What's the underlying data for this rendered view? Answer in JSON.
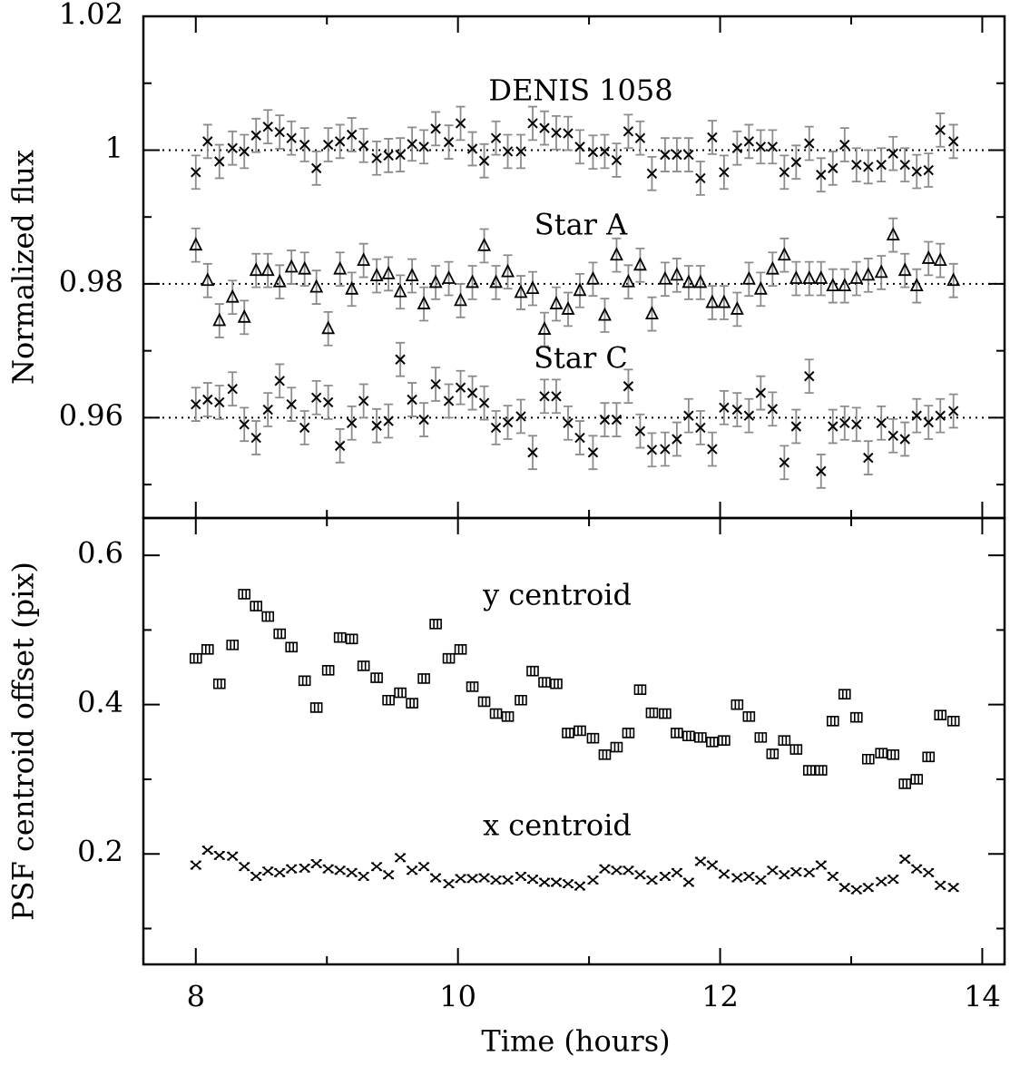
{
  "chart_data": [
    {
      "type": "scatter",
      "ylabel": "Normalized flux",
      "x": [
        8.0,
        8.09,
        8.18,
        8.28,
        8.37,
        8.46,
        8.55,
        8.64,
        8.73,
        8.83,
        8.92,
        9.01,
        9.1,
        9.19,
        9.28,
        9.38,
        9.47,
        9.56,
        9.65,
        9.74,
        9.83,
        9.93,
        10.02,
        10.11,
        10.2,
        10.29,
        10.38,
        10.48,
        10.57,
        10.66,
        10.75,
        10.84,
        10.93,
        11.03,
        11.12,
        11.21,
        11.3,
        11.39,
        11.48,
        11.58,
        11.67,
        11.76,
        11.85,
        11.94,
        12.03,
        12.13,
        12.22,
        12.31,
        12.4,
        12.49,
        12.58,
        12.68,
        12.77,
        12.86,
        12.95,
        13.04,
        13.13,
        13.23,
        13.32,
        13.41,
        13.5,
        13.59,
        13.68,
        13.78
      ],
      "series": [
        {
          "name": "DENIS 1058",
          "marker": "x",
          "color": "#000000",
          "error_color": "#8c8c8c",
          "error": 0.0025,
          "values": [
            0.9967,
            1.0013,
            0.9983,
            1.0003,
            0.9998,
            1.0022,
            1.0035,
            1.0027,
            1.0018,
            1.0008,
            0.9973,
            1.0008,
            1.0013,
            1.0023,
            1.0007,
            0.9988,
            0.9992,
            0.9993,
            1.0009,
            1.0005,
            1.0032,
            1.0012,
            1.004,
            1.0002,
            0.9984,
            1.0018,
            0.9998,
            0.9998,
            1.004,
            1.0033,
            1.0026,
            1.0025,
            1.0005,
            0.9997,
            0.9998,
            0.9985,
            1.0028,
            1.0018,
            0.9965,
            0.9993,
            0.9993,
            0.9993,
            0.9958,
            1.0019,
            0.9967,
            1.0003,
            1.0013,
            1.0005,
            1.0005,
            0.9967,
            0.9982,
            1.001,
            0.9963,
            0.9973,
            1.0008,
            0.9978,
            0.9975,
            0.9978,
            0.9995,
            0.9978,
            0.9968,
            0.997,
            1.003,
            1.0013
          ]
        },
        {
          "name": "Star A",
          "marker": "triangle",
          "color": "#000000",
          "error_color": "#8c8c8c",
          "error": 0.0025,
          "values": [
            0.9858,
            0.9805,
            0.9745,
            0.978,
            0.975,
            0.982,
            0.982,
            0.9803,
            0.9825,
            0.9822,
            0.9795,
            0.9733,
            0.9822,
            0.9792,
            0.9835,
            0.9812,
            0.9815,
            0.9788,
            0.9812,
            0.977,
            0.9802,
            0.9808,
            0.9775,
            0.9802,
            0.9857,
            0.9802,
            0.9818,
            0.9787,
            0.9793,
            0.9732,
            0.977,
            0.9762,
            0.979,
            0.9807,
            0.9753,
            0.9843,
            0.9803,
            0.9828,
            0.9755,
            0.9807,
            0.9813,
            0.9802,
            0.9802,
            0.9772,
            0.9772,
            0.9762,
            0.9807,
            0.9792,
            0.9822,
            0.9843,
            0.9808,
            0.9808,
            0.9808,
            0.9797,
            0.9797,
            0.9808,
            0.9813,
            0.9817,
            0.9873,
            0.982,
            0.9797,
            0.9838,
            0.9835,
            0.9805
          ]
        },
        {
          "name": "Star C",
          "marker": "x",
          "color": "#000000",
          "error_color": "#8c8c8c",
          "error": 0.0025,
          "values": [
            0.962,
            0.9627,
            0.9623,
            0.9643,
            0.959,
            0.957,
            0.9612,
            0.9655,
            0.962,
            0.9585,
            0.963,
            0.9623,
            0.9558,
            0.9592,
            0.9625,
            0.9588,
            0.9595,
            0.9687,
            0.9627,
            0.9597,
            0.965,
            0.9625,
            0.9645,
            0.9637,
            0.9622,
            0.9585,
            0.9593,
            0.9602,
            0.9548,
            0.9632,
            0.9632,
            0.9592,
            0.957,
            0.9548,
            0.9597,
            0.9597,
            0.9647,
            0.958,
            0.9552,
            0.9553,
            0.9568,
            0.9603,
            0.9585,
            0.9553,
            0.9615,
            0.9612,
            0.9603,
            0.9637,
            0.9613,
            0.9533,
            0.9587,
            0.9662,
            0.952,
            0.9587,
            0.9592,
            0.959,
            0.954,
            0.9592,
            0.9573,
            0.9568,
            0.9603,
            0.9593,
            0.9603,
            0.961
          ]
        }
      ],
      "reference_lines": [
        1,
        0.98,
        0.96
      ],
      "xlim": [
        7.6,
        14.17
      ],
      "ylim": [
        0.945,
        1.02
      ],
      "yticks": [
        0.96,
        0.98,
        1,
        1.02
      ],
      "minor_yticks": [
        0.95,
        0.97,
        0.99,
        1.01
      ]
    },
    {
      "type": "scatter",
      "ylabel": "PSF centroid offset (pix)",
      "xlabel": "Time (hours)",
      "x": [
        8.0,
        8.09,
        8.18,
        8.28,
        8.37,
        8.46,
        8.55,
        8.64,
        8.73,
        8.83,
        8.92,
        9.01,
        9.1,
        9.19,
        9.28,
        9.38,
        9.47,
        9.56,
        9.65,
        9.74,
        9.83,
        9.93,
        10.02,
        10.11,
        10.2,
        10.29,
        10.38,
        10.48,
        10.57,
        10.66,
        10.75,
        10.84,
        10.93,
        11.03,
        11.12,
        11.21,
        11.3,
        11.39,
        11.48,
        11.58,
        11.67,
        11.76,
        11.85,
        11.94,
        12.03,
        12.13,
        12.22,
        12.31,
        12.4,
        12.49,
        12.58,
        12.68,
        12.77,
        12.86,
        12.95,
        13.04,
        13.13,
        13.23,
        13.32,
        13.41,
        13.5,
        13.59,
        13.68,
        13.78
      ],
      "series": [
        {
          "name": "y centroid",
          "marker": "box",
          "color": "#000000",
          "values": [
            0.462,
            0.474,
            0.428,
            0.48,
            0.548,
            0.532,
            0.518,
            0.495,
            0.477,
            0.432,
            0.396,
            0.446,
            0.49,
            0.488,
            0.452,
            0.436,
            0.406,
            0.416,
            0.402,
            0.435,
            0.508,
            0.462,
            0.474,
            0.424,
            0.404,
            0.388,
            0.384,
            0.406,
            0.445,
            0.43,
            0.428,
            0.362,
            0.365,
            0.355,
            0.333,
            0.343,
            0.362,
            0.42,
            0.389,
            0.388,
            0.362,
            0.358,
            0.356,
            0.35,
            0.352,
            0.4,
            0.384,
            0.356,
            0.334,
            0.352,
            0.34,
            0.312,
            0.312,
            0.378,
            0.414,
            0.383,
            0.327,
            0.335,
            0.333,
            0.294,
            0.3,
            0.33,
            0.386,
            0.378
          ]
        },
        {
          "name": "x centroid",
          "marker": "cross",
          "color": "#000000",
          "values": [
            0.185,
            0.205,
            0.198,
            0.197,
            0.183,
            0.17,
            0.177,
            0.175,
            0.18,
            0.181,
            0.187,
            0.18,
            0.178,
            0.175,
            0.17,
            0.183,
            0.172,
            0.195,
            0.178,
            0.183,
            0.168,
            0.16,
            0.167,
            0.167,
            0.168,
            0.165,
            0.165,
            0.17,
            0.166,
            0.162,
            0.162,
            0.16,
            0.157,
            0.165,
            0.18,
            0.178,
            0.178,
            0.172,
            0.165,
            0.17,
            0.175,
            0.162,
            0.19,
            0.185,
            0.173,
            0.168,
            0.17,
            0.165,
            0.178,
            0.172,
            0.176,
            0.175,
            0.185,
            0.17,
            0.155,
            0.152,
            0.155,
            0.163,
            0.166,
            0.193,
            0.18,
            0.175,
            0.158,
            0.155
          ]
        }
      ],
      "xlim": [
        7.6,
        14.17
      ],
      "ylim": [
        0.052,
        0.65
      ],
      "xticks": [
        8,
        10,
        12,
        14
      ],
      "minor_xticks": [
        9,
        11,
        13
      ],
      "yticks": [
        0.2,
        0.4,
        0.6
      ],
      "minor_yticks": [
        0.1,
        0.3,
        0.5
      ]
    }
  ]
}
